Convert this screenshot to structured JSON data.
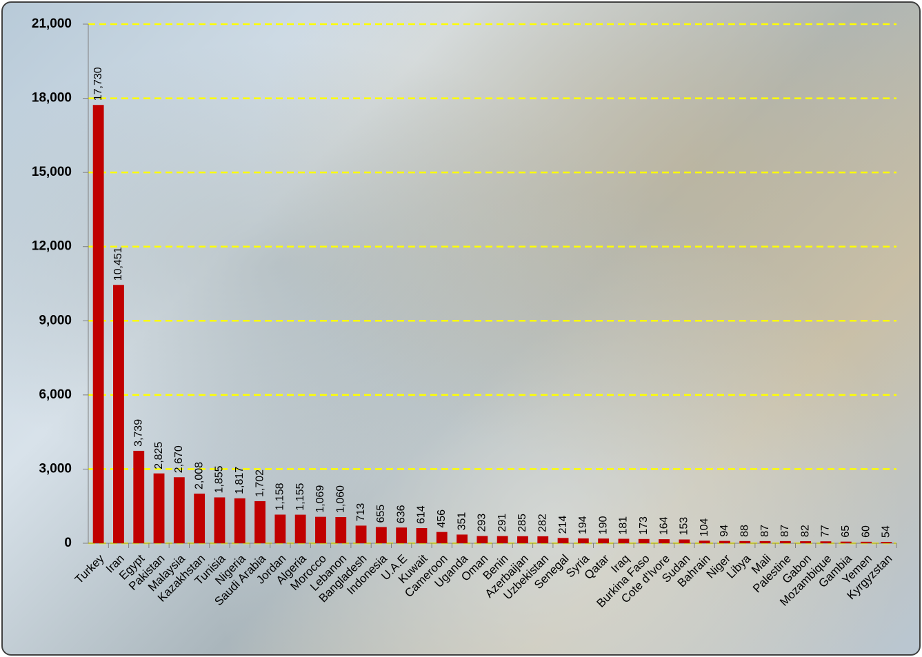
{
  "chart_data": {
    "type": "bar",
    "categories": [
      "Turkey",
      "Iran",
      "Egypt",
      "Pakistan",
      "Malaysia",
      "Kazakhstan",
      "Tunisia",
      "Nigeria",
      "Saudi Arabia",
      "Jordan",
      "Algeria",
      "Morocco",
      "Lebanon",
      "Bangladesh",
      "Indonesia",
      "U.A.E",
      "Kuwait",
      "Cameroon",
      "Uganda",
      "Oman",
      "Benin",
      "Azerbaijan",
      "Uzbekistan",
      "Senegal",
      "Syria",
      "Qatar",
      "Iraq",
      "Burkina Faso",
      "Cote d'Ivore",
      "Sudan",
      "Bahrain",
      "Niger",
      "Libya",
      "Mali",
      "Palestine",
      "Gabon",
      "Mozambique",
      "Gambia",
      "Yemen",
      "Kyrgyzstan"
    ],
    "values": [
      17730,
      10451,
      3739,
      2825,
      2670,
      2008,
      1855,
      1817,
      1702,
      1158,
      1155,
      1069,
      1060,
      713,
      655,
      636,
      614,
      456,
      351,
      293,
      291,
      285,
      282,
      214,
      194,
      190,
      181,
      173,
      164,
      153,
      104,
      94,
      88,
      87,
      87,
      82,
      77,
      65,
      60,
      54
    ],
    "value_labels": [
      "17,730",
      "10,451",
      "3,739",
      "2,825",
      "2,670",
      "2,008",
      "1,855",
      "1,817",
      "1,702",
      "1,158",
      "1,155",
      "1,069",
      "1,060",
      "713",
      "655",
      "636",
      "614",
      "456",
      "351",
      "293",
      "291",
      "285",
      "282",
      "214",
      "194",
      "190",
      "181",
      "173",
      "164",
      "153",
      "104",
      "94",
      "88",
      "87",
      "87",
      "82",
      "77",
      "65",
      "60",
      "54"
    ],
    "color": "#c00000",
    "ylim": [
      0,
      21000
    ],
    "yticks": [
      0,
      {
        "value": 3000,
        "label": "3,000"
      },
      {
        "value": 6000,
        "label": "6,000"
      },
      {
        "value": 9000,
        "label": "9,000"
      },
      {
        "value": 12000,
        "label": "12,000"
      },
      {
        "value": 15000,
        "label": "15,000"
      },
      {
        "value": 18000,
        "label": "18,000"
      },
      {
        "value": 21000,
        "label": "21,000"
      }
    ],
    "grid": true,
    "grid_color": "#ffff00"
  }
}
